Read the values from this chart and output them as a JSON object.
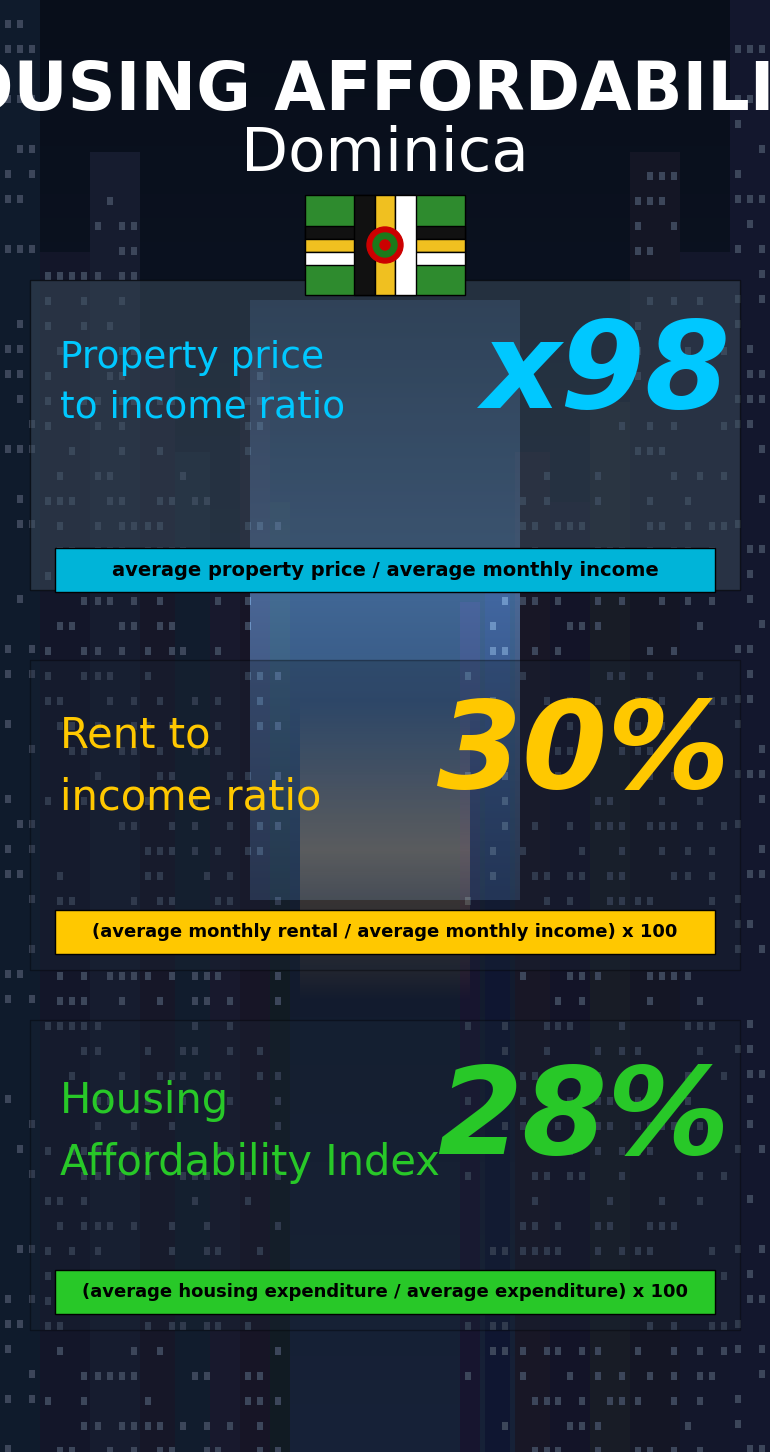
{
  "title_line1": "HOUSING AFFORDABILITY",
  "title_line2": "Dominica",
  "bg_color": "#080e1a",
  "section1_label": "Property price\nto income ratio",
  "section1_value": "x98",
  "section1_label_color": "#00c8ff",
  "section1_value_color": "#00c8ff",
  "section1_formula": "average property price / average monthly income",
  "section1_formula_bg": "#00b4d8",
  "section2_label": "Rent to\nincome ratio",
  "section2_value": "30%",
  "section2_label_color": "#ffc800",
  "section2_value_color": "#ffc800",
  "section2_formula": "(average monthly rental / average monthly income) x 100",
  "section2_formula_bg": "#ffc800",
  "section3_label": "Housing\nAffordability Index",
  "section3_value": "28%",
  "section3_label_color": "#28c828",
  "section3_value_color": "#28c828",
  "section3_formula": "(average housing expenditure / average expenditure) x 100",
  "section3_formula_bg": "#28c828",
  "title_color": "#ffffff",
  "country_color": "#ffffff",
  "formula_text_color": "#000000",
  "panel1_color": "#2a3a4a",
  "panel2_color": "#1a2535",
  "panel3_color": "#1a2535"
}
